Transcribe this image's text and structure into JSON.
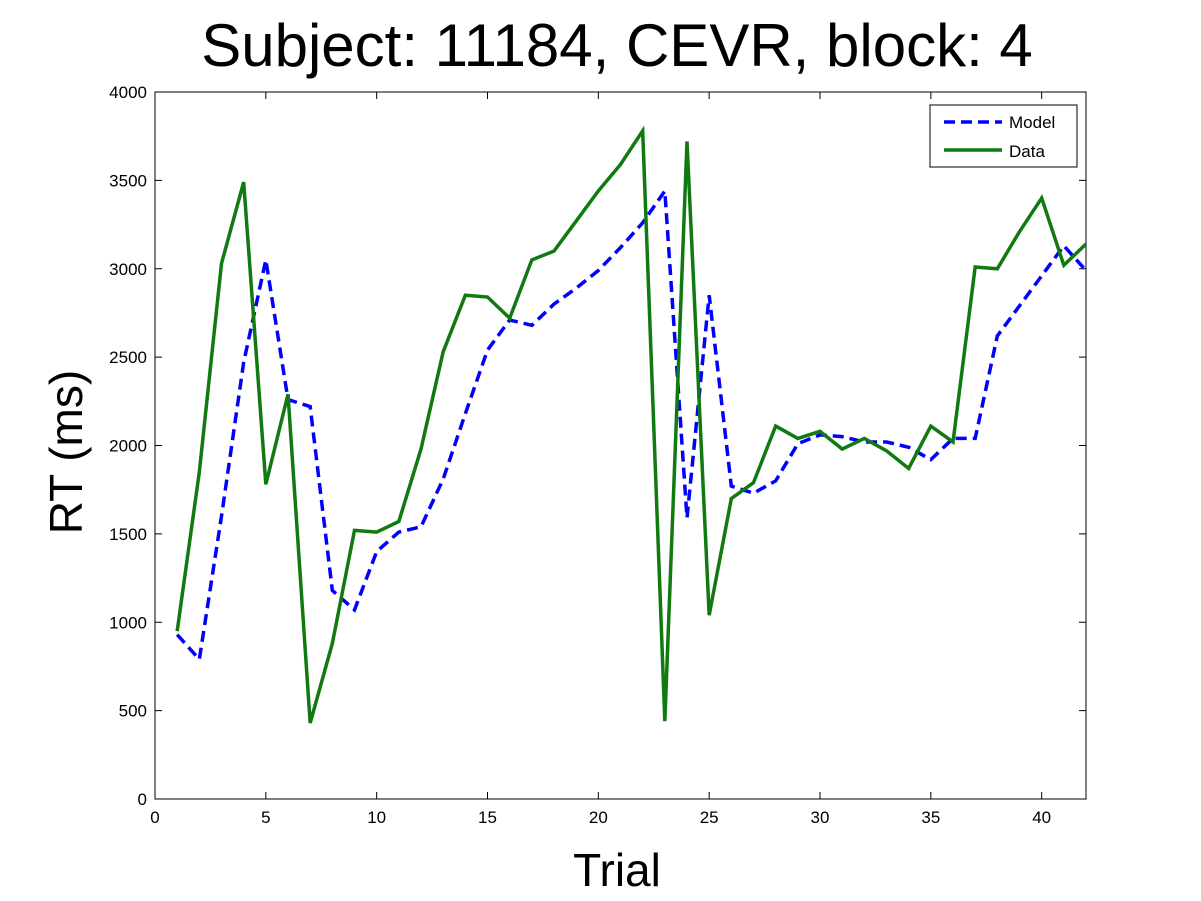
{
  "chart_data": {
    "type": "line",
    "title": "Subject: 11184, CEVR, block: 4",
    "xlabel": "Trial",
    "ylabel": "RT (ms)",
    "xlim": [
      0,
      42
    ],
    "ylim": [
      0,
      4000
    ],
    "x_ticks": [
      0,
      5,
      10,
      15,
      20,
      25,
      30,
      35,
      40
    ],
    "y_ticks": [
      0,
      500,
      1000,
      1500,
      2000,
      2500,
      3000,
      3500,
      4000
    ],
    "grid": false,
    "legend_position": "top-right",
    "x": [
      1,
      2,
      3,
      4,
      5,
      6,
      7,
      8,
      9,
      10,
      11,
      12,
      13,
      14,
      15,
      16,
      17,
      18,
      19,
      20,
      21,
      22,
      23,
      24,
      25,
      26,
      27,
      28,
      29,
      30,
      31,
      32,
      33,
      34,
      35,
      36,
      37,
      38,
      39,
      40,
      41,
      42
    ],
    "series": [
      {
        "name": "Model",
        "color": "#0000ff",
        "style": "dashed",
        "values": [
          930,
          790,
          1600,
          2470,
          3050,
          2260,
          2220,
          1180,
          1070,
          1400,
          1510,
          1540,
          1810,
          2180,
          2540,
          2710,
          2680,
          2800,
          2890,
          2990,
          3120,
          3260,
          3440,
          1590,
          2850,
          1770,
          1730,
          1800,
          2010,
          2060,
          2050,
          2020,
          2020,
          1990,
          1920,
          2040,
          2040,
          2620,
          2790,
          2960,
          3130,
          2990
        ]
      },
      {
        "name": "Data",
        "color": "#107a10",
        "style": "solid",
        "values": [
          950,
          1850,
          3030,
          3490,
          1780,
          2290,
          430,
          880,
          1520,
          1510,
          1570,
          1980,
          2530,
          2850,
          2840,
          2720,
          3050,
          3100,
          3270,
          3440,
          3590,
          3780,
          440,
          3720,
          1040,
          1700,
          1790,
          2110,
          2040,
          2080,
          1980,
          2040,
          1970,
          1870,
          2110,
          2020,
          3010,
          3000,
          3210,
          3400,
          3020,
          3140
        ]
      }
    ]
  }
}
